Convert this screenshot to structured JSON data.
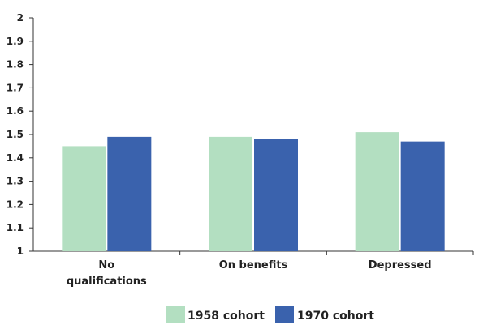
{
  "chart_data": {
    "type": "bar",
    "categories": [
      [
        "No",
        "qualifications"
      ],
      [
        "On benefits"
      ],
      [
        "Depressed"
      ]
    ],
    "series": [
      {
        "name": "1958 cohort",
        "values": [
          1.45,
          1.49,
          1.51
        ],
        "color": "#b3dfc1"
      },
      {
        "name": "1970 cohort",
        "values": [
          1.49,
          1.48,
          1.47
        ],
        "color": "#3a62ad"
      }
    ],
    "title": "",
    "xlabel": "",
    "ylabel": "",
    "ylim": [
      1,
      2
    ],
    "yticks": [
      "1",
      "1.1",
      "1.2",
      "1.3",
      "1.4",
      "1.5",
      "1.6",
      "1.7",
      "1.8",
      "1.9",
      "2"
    ],
    "grid": false,
    "legend": "bottom-center"
  }
}
